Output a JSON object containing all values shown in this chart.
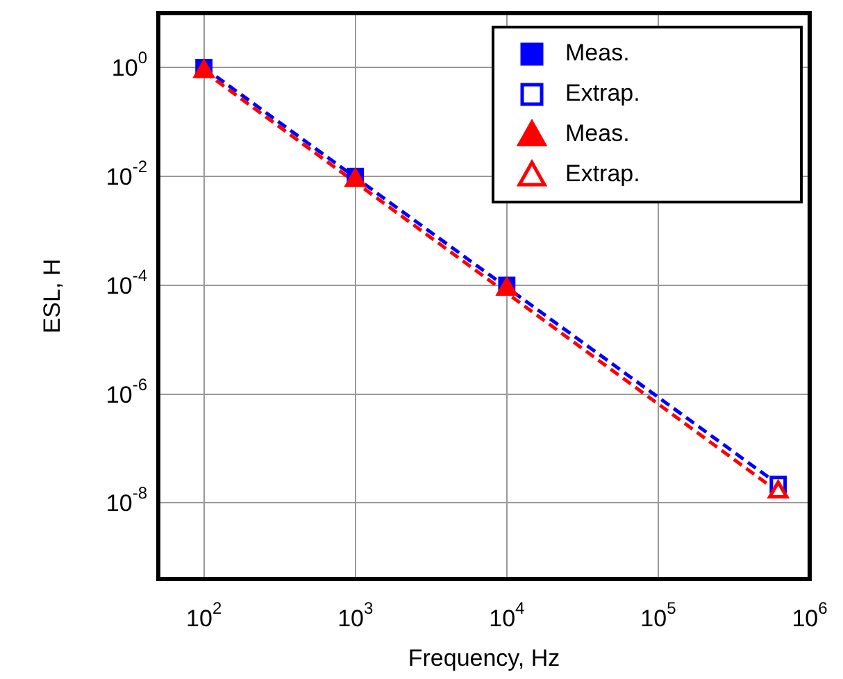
{
  "chart_data": {
    "type": "scatter",
    "xlabel": "Frequency, Hz",
    "ylabel": "ESL, H",
    "log": "xy",
    "grid": true,
    "legend": "top right",
    "xlim": [
      50,
      1000000
    ],
    "ylim": [
      4e-10,
      10
    ],
    "xticks": [
      {
        "value": 100,
        "label": "10$^{2}$"
      },
      {
        "value": 1000,
        "label": "10$^{3}$"
      },
      {
        "value": 10000,
        "label": "10$^{4}$"
      },
      {
        "value": 100000,
        "label": "10$^{5}$"
      },
      {
        "value": 1000000,
        "label": "10$^{6}$"
      }
    ],
    "yticks": [
      {
        "value": 1,
        "label": "10$^{0}$"
      },
      {
        "value": 0.01,
        "label": "10$^{-2}$"
      },
      {
        "value": 0.0001,
        "label": "10$^{-4}$"
      },
      {
        "value": 1e-06,
        "label": "10$^{-6}$"
      },
      {
        "value": 1e-08,
        "label": "10$^{-8}$"
      }
    ],
    "series": [
      {
        "type": "line",
        "color": "#0000ff",
        "line_style": "dashed",
        "marker": "none",
        "x": [
          100,
          620000
        ],
        "values": [
          1,
          2.2e-08
        ]
      },
      {
        "type": "line",
        "color": "#ff0000",
        "line_style": "dashed",
        "marker": "none",
        "x": [
          100,
          620000
        ],
        "values": [
          0.85,
          1.6e-08
        ]
      },
      {
        "name": "Meas.",
        "color": "#0000ff",
        "marker": "square",
        "x": [
          100,
          1000,
          10000
        ],
        "values": [
          1,
          0.01,
          0.0001
        ]
      },
      {
        "name": "Extrap.",
        "color": "#0000ff",
        "marker": "square-open",
        "x": [
          620000
        ],
        "values": [
          2.2e-08
        ]
      },
      {
        "name": "Meas.",
        "color": "#ff0000",
        "marker": "triangle",
        "x": [
          100,
          1000,
          10000
        ],
        "values": [
          0.85,
          0.0085,
          8.5e-05
        ]
      },
      {
        "name": "Extrap.",
        "color": "#ff0000",
        "marker": "triangle-open",
        "x": [
          620000
        ],
        "values": [
          1.6e-08
        ]
      }
    ]
  }
}
